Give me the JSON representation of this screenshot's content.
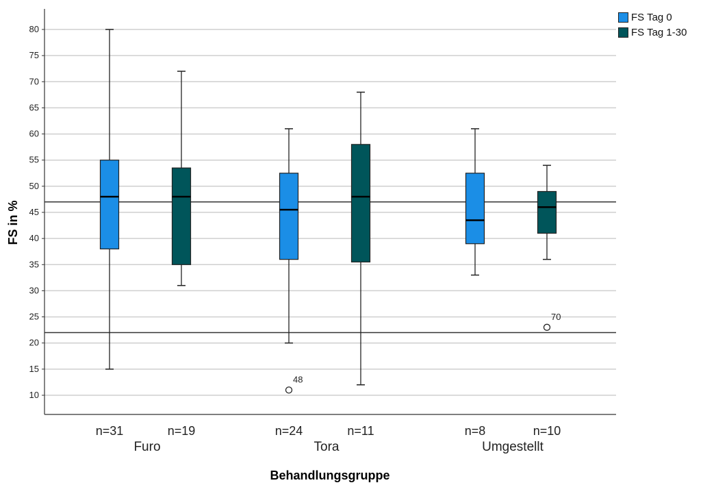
{
  "chart_data": {
    "type": "box",
    "xlabel": "Behandlungsgruppe",
    "ylabel": "FS in %",
    "ylim": [
      6,
      84
    ],
    "yticks": [
      10,
      15,
      20,
      25,
      30,
      35,
      40,
      45,
      50,
      55,
      60,
      65,
      70,
      75,
      80
    ],
    "grid": true,
    "legend_position": "top-right",
    "reference_lines": [
      47,
      22
    ],
    "series": [
      {
        "name": "FS Tag 0",
        "color": "#1b8ee6"
      },
      {
        "name": "FS Tag 1-30",
        "color": "#00555a"
      }
    ],
    "groups": [
      {
        "name": "Furo",
        "boxes": [
          {
            "series": "FS Tag 0",
            "n_label": "n=31",
            "min": 15,
            "q1": 38,
            "median": 48,
            "q3": 55,
            "max": 80,
            "outliers": []
          },
          {
            "series": "FS Tag 1-30",
            "n_label": "n=19",
            "min": 31,
            "q1": 35,
            "median": 48,
            "q3": 53.5,
            "max": 72,
            "outliers": []
          }
        ]
      },
      {
        "name": "Tora",
        "boxes": [
          {
            "series": "FS Tag 0",
            "n_label": "n=24",
            "min": 20,
            "q1": 36,
            "median": 45.5,
            "q3": 52.5,
            "max": 61,
            "outliers": [
              {
                "value": 11,
                "label": "48"
              }
            ]
          },
          {
            "series": "FS Tag 1-30",
            "n_label": "n=11",
            "min": 12,
            "q1": 35.5,
            "median": 48,
            "q3": 58,
            "max": 68,
            "outliers": []
          }
        ]
      },
      {
        "name": "Umgestellt",
        "boxes": [
          {
            "series": "FS Tag 0",
            "n_label": "n=8",
            "min": 33,
            "q1": 39,
            "median": 43.5,
            "q3": 52.5,
            "max": 61,
            "outliers": []
          },
          {
            "series": "FS Tag 1-30",
            "n_label": "n=10",
            "min": 36,
            "q1": 41,
            "median": 46,
            "q3": 49,
            "max": 54,
            "outliers": [
              {
                "value": 23,
                "label": "70"
              }
            ]
          }
        ]
      }
    ]
  }
}
